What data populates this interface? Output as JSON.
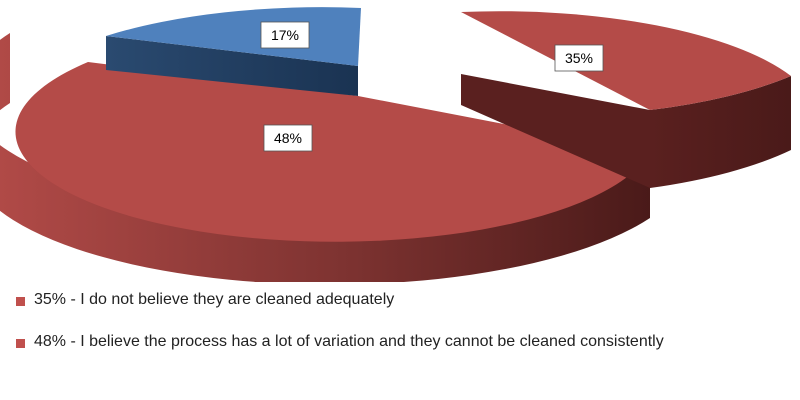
{
  "chart_data": {
    "type": "pie",
    "style": "3d-exploded",
    "title": "",
    "slices": [
      {
        "label": "17%",
        "value": 17,
        "color": "#4f81bd",
        "side_color": "#1f3a5c"
      },
      {
        "label": "35%",
        "value": 35,
        "color": "#b44b48",
        "side_color": "#4e1c1b"
      },
      {
        "label": "48%",
        "value": 48,
        "color": "#b44b48",
        "side_color": "#4e1c1b"
      }
    ],
    "legend": {
      "placement": "bottom",
      "entries": [
        {
          "text": "35% - I do not believe they are cleaned adequately",
          "color": "#c0504d"
        },
        {
          "text": "48% - I believe the process has a lot of variation and they cannot be cleaned consistently",
          "color": "#c0504d"
        }
      ]
    }
  }
}
